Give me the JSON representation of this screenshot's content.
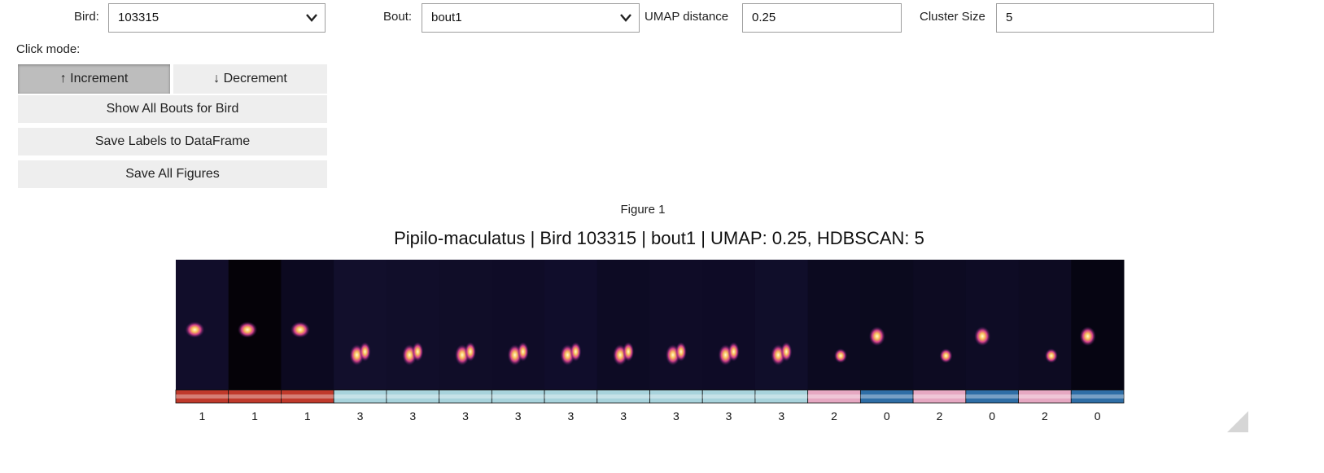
{
  "controls": {
    "bird_label": "Bird:",
    "bird_value": "103315",
    "bout_label": "Bout:",
    "bout_value": "bout1",
    "umap_label": "UMAP distance",
    "umap_value": "0.25",
    "cluster_label": "Cluster Size",
    "cluster_value": "5",
    "click_mode_label": "Click mode:",
    "increment_label": "↑ Increment",
    "decrement_label": "↓ Decrement",
    "show_all_label": "Show All Bouts for Bird",
    "save_labels_label": "Save Labels to DataFrame",
    "save_figures_label": "Save All Figures"
  },
  "figure": {
    "caption": "Figure 1",
    "title": "Pipilo-maculatus | Bird 103315 | bout1 | UMAP: 0.25, HDBSCAN: 5"
  },
  "chart_data": {
    "type": "heatmap",
    "title": "Pipilo-maculatus | Bird 103315 | bout1 | UMAP: 0.25, HDBSCAN: 5",
    "segments": 18,
    "cluster_labels": [
      1,
      1,
      1,
      3,
      3,
      3,
      3,
      3,
      3,
      3,
      3,
      3,
      2,
      0,
      2,
      0,
      2,
      0
    ],
    "colors": {
      "0": "#2e6ea6",
      "1": "#c0392b",
      "2": "#e6a8c2",
      "3": "#a8d3dc",
      "background": "#0e0b25"
    }
  }
}
